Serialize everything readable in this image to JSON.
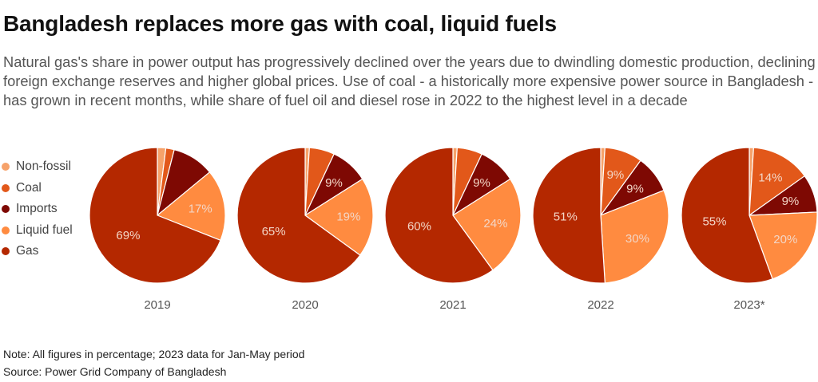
{
  "title": "Bangladesh replaces more gas with coal, liquid fuels",
  "subtitle": "Natural gas's share in power output has progressively declined over the years due to dwindling domestic production, declining foreign exchange reserves and higher global prices. Use of coal - a historically more expensive power source in Bangladesh - has grown in recent months, while share of fuel oil and diesel rose in 2022 to the highest level in a decade",
  "legend": [
    {
      "label": "Non-fossil",
      "color": "#F6A26A"
    },
    {
      "label": "Coal",
      "color": "#E2581A"
    },
    {
      "label": "Imports",
      "color": "#7E0903"
    },
    {
      "label": "Liquid fuel",
      "color": "#FF8B40"
    },
    {
      "label": "Gas",
      "color": "#B42800"
    }
  ],
  "note": "Note: All figures in percentage; 2023 data for Jan-May period",
  "source": "Source: Power Grid Company of Bangladesh",
  "chart_data": {
    "type": "pie",
    "categories": [
      "Non-fossil",
      "Coal",
      "Imports",
      "Liquid fuel",
      "Gas"
    ],
    "label_color": "#F3D6C6",
    "pies": [
      {
        "year": "2019",
        "values": [
          2,
          2,
          10,
          17,
          69
        ],
        "labels": [
          "",
          "",
          "",
          "17%",
          "69%"
        ]
      },
      {
        "year": "2020",
        "values": [
          1,
          6,
          9,
          19,
          65
        ],
        "labels": [
          "",
          "",
          "9%",
          "19%",
          "65%"
        ]
      },
      {
        "year": "2021",
        "values": [
          1,
          6,
          9,
          24,
          60
        ],
        "labels": [
          "",
          "",
          "9%",
          "24%",
          "60%"
        ]
      },
      {
        "year": "2022",
        "values": [
          1,
          9,
          9,
          30,
          51
        ],
        "labels": [
          "",
          "9%",
          "9%",
          "30%",
          "51%"
        ]
      },
      {
        "year": "2023*",
        "values": [
          1,
          14,
          9,
          20,
          55
        ],
        "labels": [
          "",
          "14%",
          "9%",
          "20%",
          "55%"
        ]
      }
    ]
  }
}
